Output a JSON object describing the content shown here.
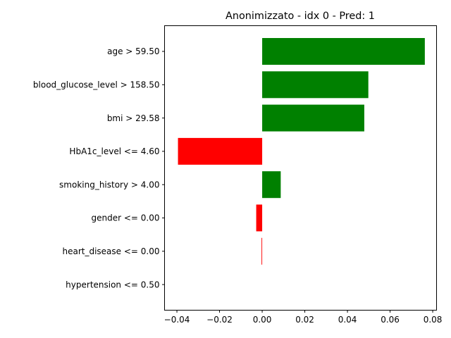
{
  "chart_data": {
    "type": "bar",
    "orientation": "horizontal",
    "title": "Anonimizzato - idx 0 - Pred: 1",
    "xlabel": "",
    "ylabel": "",
    "xlim": [
      -0.0458,
      0.0818
    ],
    "grid": false,
    "xticks": [
      -0.04,
      -0.02,
      0.0,
      0.02,
      0.04,
      0.06,
      0.08
    ],
    "xtick_labels": [
      "−0.04",
      "−0.02",
      "0.00",
      "0.02",
      "0.04",
      "0.06",
      "0.08"
    ],
    "categories": [
      "age > 59.50",
      "blood_glucose_level > 158.50",
      "bmi > 29.58",
      "HbA1c_level <= 4.60",
      "smoking_history > 4.00",
      "gender <= 0.00",
      "heart_disease <= 0.00",
      "hypertension <= 0.50"
    ],
    "values": [
      0.0763,
      0.0498,
      0.0479,
      -0.0395,
      0.0087,
      -0.0028,
      -0.0003,
      0.0
    ],
    "colors": {
      "positive": "#008000",
      "negative": "#ff0000"
    }
  }
}
